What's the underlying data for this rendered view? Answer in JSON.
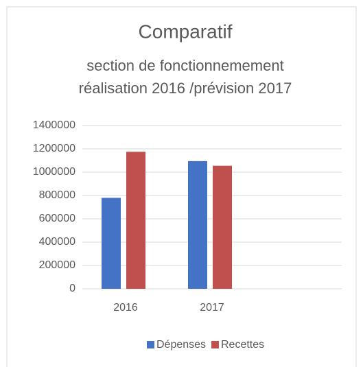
{
  "chart_data": {
    "type": "bar",
    "title": "Comparatif",
    "subtitle": [
      "section de fonctionnemement",
      "réalisation 2016 /prévision 2017"
    ],
    "categories": [
      "2016",
      "2017",
      null
    ],
    "series": [
      {
        "name": "Dépenses",
        "color": "#4472c4",
        "values": [
          780000,
          1095000,
          null
        ]
      },
      {
        "name": "Recettes",
        "color": "#c0504d",
        "values": [
          1175000,
          1055000,
          null
        ]
      }
    ],
    "ylim": [
      0,
      1400000
    ],
    "yticks": [
      0,
      200000,
      400000,
      600000,
      800000,
      1000000,
      1200000,
      1400000
    ],
    "grid": true,
    "legend": "bottom"
  }
}
